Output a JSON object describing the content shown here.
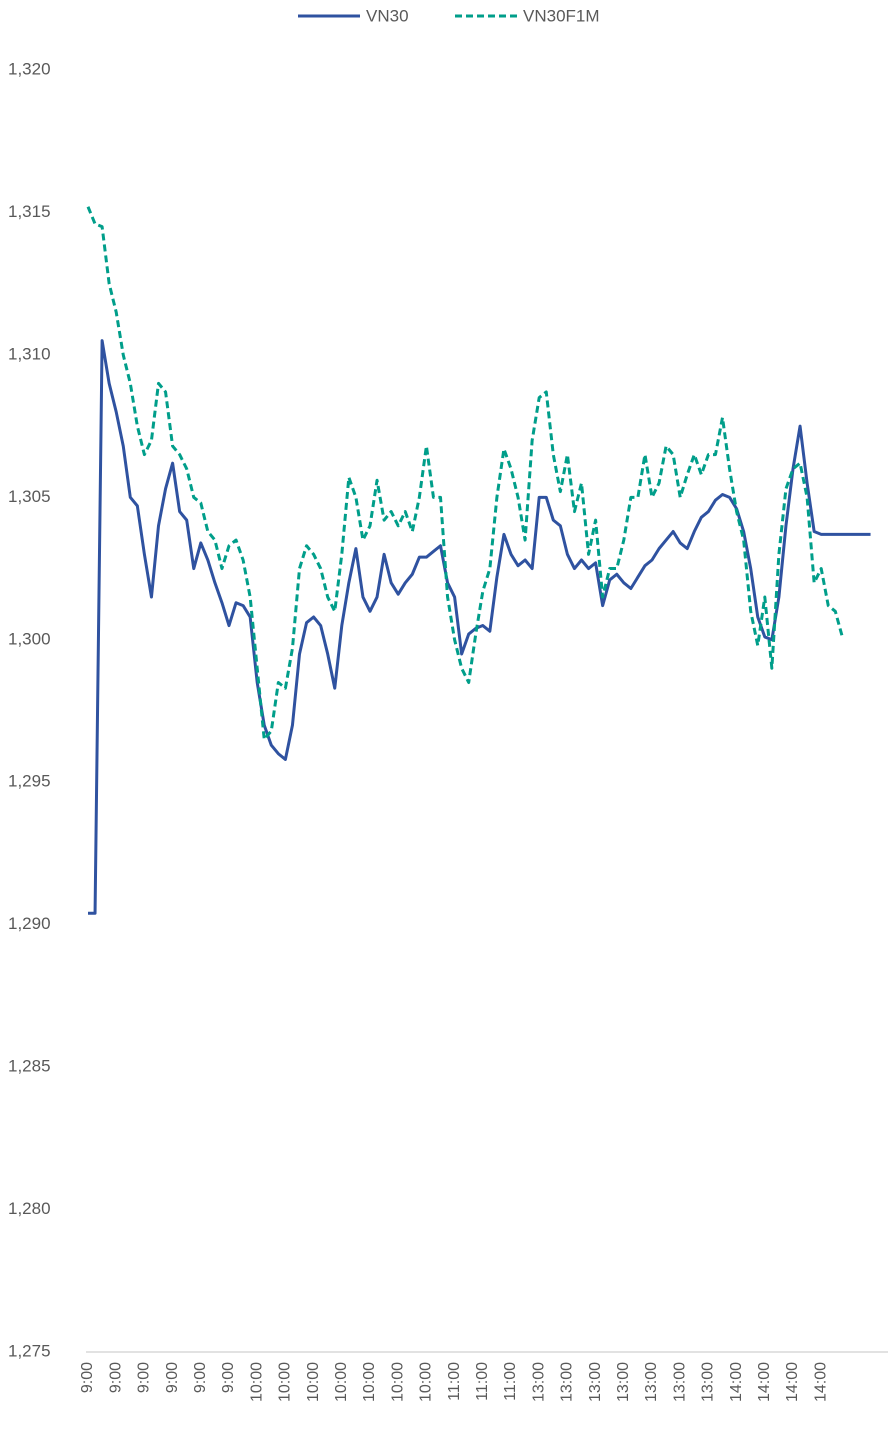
{
  "chart_data": {
    "type": "line",
    "categories": [
      "9:00",
      null,
      null,
      null,
      "9:00",
      null,
      null,
      null,
      "9:00",
      null,
      null,
      null,
      "9:00",
      null,
      null,
      null,
      "9:00",
      null,
      null,
      null,
      "9:00",
      null,
      null,
      null,
      "10:00",
      null,
      null,
      null,
      "10:00",
      null,
      null,
      null,
      "10:00",
      null,
      null,
      null,
      "10:00",
      null,
      null,
      null,
      "10:00",
      null,
      null,
      null,
      "10:00",
      null,
      null,
      null,
      "10:00",
      null,
      null,
      null,
      "11:00",
      null,
      null,
      null,
      "11:00",
      null,
      null,
      null,
      "11:00",
      null,
      null,
      null,
      "13:00",
      null,
      null,
      null,
      "13:00",
      null,
      null,
      null,
      "13:00",
      null,
      null,
      null,
      "13:00",
      null,
      null,
      null,
      "13:00",
      null,
      null,
      null,
      "13:00",
      null,
      null,
      null,
      "13:00",
      null,
      null,
      null,
      "14:00",
      null,
      null,
      null,
      "14:00",
      null,
      null,
      null,
      "14:00",
      null,
      null,
      null,
      "14:00",
      null,
      null,
      null,
      null,
      null,
      null,
      null
    ],
    "series": [
      {
        "name": "VN30",
        "color": "#2f52a0",
        "dashed": false,
        "values": [
          1290.4,
          1290.4,
          1310.5,
          1309,
          1308,
          1306.8,
          1305,
          1304.7,
          1303,
          1301.5,
          1304,
          1305.3,
          1306.2,
          1304.5,
          1304.2,
          1302.5,
          1303.4,
          1302.8,
          1302,
          1301.3,
          1300.5,
          1301.3,
          1301.2,
          1300.8,
          1298.5,
          1297,
          1296.3,
          1296,
          1295.8,
          1297,
          1299.5,
          1300.6,
          1300.8,
          1300.5,
          1299.5,
          1298.3,
          1300.5,
          1302,
          1303.2,
          1301.5,
          1301,
          1301.5,
          1303,
          1302,
          1301.6,
          1302,
          1302.3,
          1302.9,
          1302.9,
          1303.1,
          1303.3,
          1302,
          1301.5,
          1299.5,
          1300.2,
          1300.4,
          1300.5,
          1300.3,
          1302.2,
          1303.7,
          1303,
          1302.6,
          1302.8,
          1302.5,
          1305,
          1305,
          1304.2,
          1304,
          1303,
          1302.5,
          1302.8,
          1302.5,
          1302.7,
          1301.2,
          1302.1,
          1302.3,
          1302,
          1301.8,
          1302.2,
          1302.6,
          1302.8,
          1303.2,
          1303.5,
          1303.8,
          1303.4,
          1303.2,
          1303.8,
          1304.3,
          1304.5,
          1304.9,
          1305.1,
          1305,
          1304.6,
          1303.8,
          1302.5,
          1300.8,
          1300.1,
          1300,
          1301.5,
          1304,
          1306,
          1307.5,
          1305.5,
          1303.8,
          1303.7,
          1303.7,
          1303.7,
          1303.7,
          1303.7,
          1303.7,
          1303.7,
          1303.7
        ]
      },
      {
        "name": "VN30F1M",
        "color": "#009e8a",
        "dashed": true,
        "values": [
          1315.2,
          1314.6,
          1314.5,
          1312.5,
          1311.5,
          1310,
          1309,
          1307.5,
          1306.5,
          1307,
          1309,
          1308.7,
          1306.8,
          1306.5,
          1306,
          1305,
          1304.8,
          1303.8,
          1303.5,
          1302.5,
          1303.3,
          1303.5,
          1302.8,
          1301.5,
          1299,
          1296.5,
          1296.8,
          1298.5,
          1298.3,
          1299.7,
          1302.5,
          1303.3,
          1303,
          1302.5,
          1301.5,
          1301,
          1303,
          1305.7,
          1305,
          1303.5,
          1304,
          1305.6,
          1304.2,
          1304.5,
          1304,
          1304.5,
          1303.8,
          1305,
          1306.8,
          1305,
          1305,
          1301.5,
          1300,
          1299,
          1298.5,
          1300.2,
          1301.7,
          1302.5,
          1305,
          1306.7,
          1306,
          1305,
          1303.5,
          1307,
          1308.5,
          1308.7,
          1306.5,
          1305.2,
          1306.5,
          1304.5,
          1305.5,
          1303,
          1304.2,
          1301.5,
          1302.5,
          1302.5,
          1303.5,
          1305,
          1305,
          1306.5,
          1305,
          1305.5,
          1306.8,
          1306.5,
          1305,
          1305.8,
          1306.5,
          1305.8,
          1306.5,
          1306.5,
          1307.8,
          1306,
          1304.5,
          1303.5,
          1301,
          1299.8,
          1301.5,
          1299,
          1303,
          1305.3,
          1306,
          1306.2,
          1305,
          1302,
          1302.5,
          1301.2,
          1301,
          1300.1,
          null,
          null,
          null,
          null
        ]
      }
    ],
    "ylim": [
      1275,
      1320
    ],
    "yticks": [
      {
        "value": 1275,
        "label": "1,275"
      },
      {
        "value": 1280,
        "label": "1,280"
      },
      {
        "value": 1285,
        "label": "1,285"
      },
      {
        "value": 1290,
        "label": "1,290"
      },
      {
        "value": 1295,
        "label": "1,295"
      },
      {
        "value": 1300,
        "label": "1,300"
      },
      {
        "value": 1305,
        "label": "1,305"
      },
      {
        "value": 1310,
        "label": "1,310"
      },
      {
        "value": 1315,
        "label": "1,315"
      },
      {
        "value": 1320,
        "label": "1,320"
      }
    ],
    "grid": false,
    "legend": "top"
  }
}
